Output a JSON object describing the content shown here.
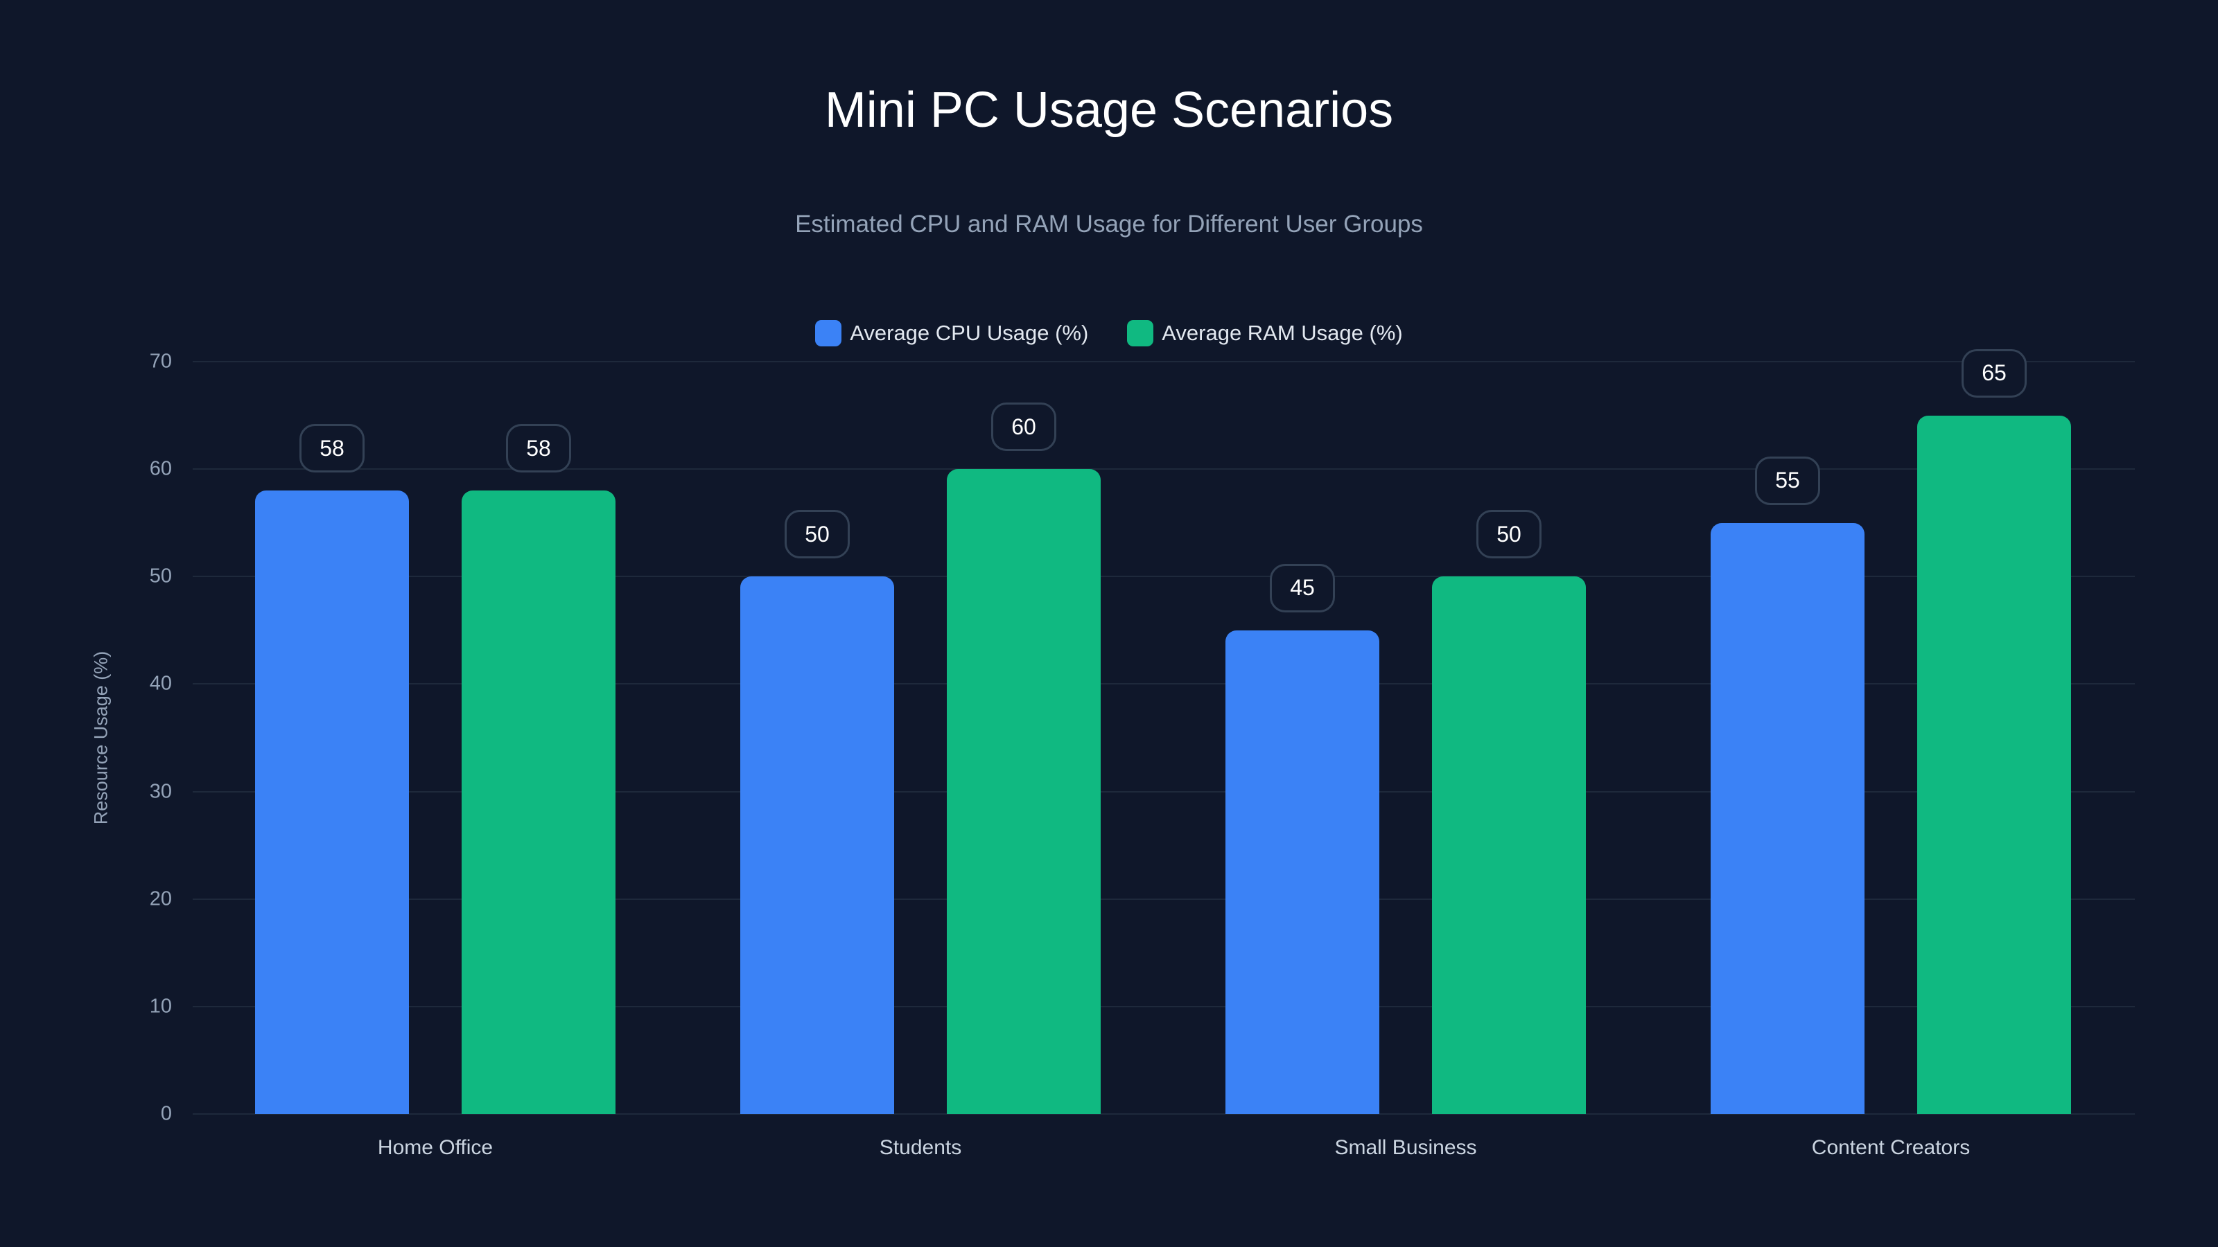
{
  "header": {
    "title": "Mini PC Usage Scenarios",
    "subtitle": "Estimated CPU and RAM Usage for Different User Groups"
  },
  "legend": [
    {
      "label": "Average CPU Usage (%)",
      "color": "#3b82f6"
    },
    {
      "label": "Average RAM Usage (%)",
      "color": "#10b981"
    }
  ],
  "axes": {
    "ylabel": "Resource Usage (%)",
    "yticks": [
      "0",
      "10",
      "20",
      "30",
      "40",
      "50",
      "60",
      "70"
    ]
  },
  "chart_data": {
    "type": "bar",
    "title": "Mini PC Usage Scenarios",
    "subtitle": "Estimated CPU and RAM Usage for Different User Groups",
    "categories": [
      "Home Office",
      "Students",
      "Small Business",
      "Content Creators"
    ],
    "series": [
      {
        "name": "Average CPU Usage (%)",
        "color": "#3b82f6",
        "values": [
          58,
          50,
          45,
          55
        ]
      },
      {
        "name": "Average RAM Usage (%)",
        "color": "#10b981",
        "values": [
          58,
          60,
          50,
          65
        ]
      }
    ],
    "xlabel": "",
    "ylabel": "Resource Usage (%)",
    "ylim": [
      0,
      70
    ],
    "yticks": [
      0,
      10,
      20,
      30,
      40,
      50,
      60,
      70
    ],
    "grid": true,
    "legend_position": "top",
    "data_labels": true
  },
  "colors": {
    "background": "#0f172a",
    "grid": "#1e293b",
    "label_border": "#334155"
  }
}
